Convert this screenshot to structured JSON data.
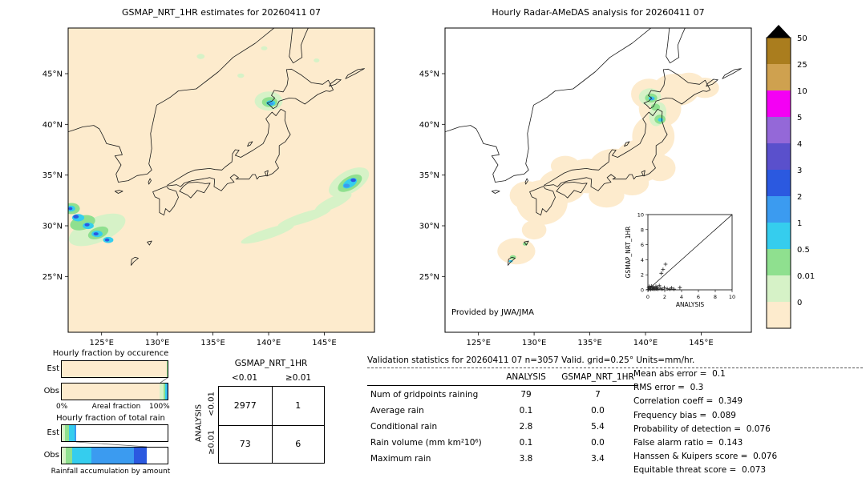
{
  "figure": {
    "bg": "#ffffff"
  },
  "left_map": {
    "title": "GSMAP_NRT_1HR estimates for 20260411 07",
    "x_ticks": [
      [
        125,
        "125°E"
      ],
      [
        130,
        "130°E"
      ],
      [
        135,
        "135°E"
      ],
      [
        140,
        "140°E"
      ],
      [
        145,
        "145°E"
      ]
    ],
    "y_ticks": [
      [
        45,
        "45°N"
      ],
      [
        40,
        "40°N"
      ],
      [
        35,
        "35°N"
      ],
      [
        30,
        "30°N"
      ],
      [
        25,
        "25°N"
      ]
    ],
    "blobs": [
      [
        133.9,
        46.7,
        0.35,
        0.25,
        0,
        1
      ],
      [
        137.5,
        44.8,
        0.3,
        0.22,
        0,
        1
      ],
      [
        139.6,
        47.5,
        0.28,
        0.2,
        0,
        1
      ],
      [
        144.3,
        46.3,
        0.26,
        0.2,
        0,
        1
      ],
      [
        140.0,
        42.3,
        1.25,
        0.95,
        0,
        1
      ],
      [
        140.1,
        42.2,
        0.7,
        0.5,
        0,
        2
      ],
      [
        140.2,
        42.1,
        0.4,
        0.28,
        0,
        3
      ],
      [
        140.25,
        42.05,
        0.18,
        0.13,
        0,
        4
      ],
      [
        147.2,
        34.3,
        2.0,
        1.1,
        -30,
        1
      ],
      [
        139.9,
        29.2,
        2.5,
        0.5,
        -18,
        1
      ],
      [
        143.2,
        30.8,
        2.5,
        0.5,
        -18,
        1
      ],
      [
        145.8,
        32.3,
        1.8,
        0.55,
        -25,
        1
      ],
      [
        147.3,
        34.2,
        1.2,
        0.65,
        -30,
        2
      ],
      [
        147.3,
        34.2,
        0.7,
        0.4,
        -30,
        3
      ],
      [
        147.0,
        33.95,
        0.28,
        0.2,
        0,
        4
      ],
      [
        147.6,
        34.5,
        0.24,
        0.18,
        0,
        5
      ],
      [
        124.6,
        29.6,
        2.7,
        1.25,
        -22,
        1
      ],
      [
        123.3,
        30.3,
        1.15,
        0.7,
        -15,
        2
      ],
      [
        124.7,
        29.3,
        0.95,
        0.55,
        -20,
        2
      ],
      [
        122.3,
        31.7,
        0.75,
        0.55,
        0,
        2
      ],
      [
        122.9,
        30.8,
        0.55,
        0.36,
        0,
        3
      ],
      [
        123.8,
        30.0,
        0.5,
        0.32,
        0,
        3
      ],
      [
        124.6,
        29.2,
        0.5,
        0.32,
        0,
        3
      ],
      [
        125.6,
        28.6,
        0.46,
        0.3,
        0,
        3
      ],
      [
        122.25,
        31.7,
        0.38,
        0.3,
        0,
        3
      ],
      [
        122.7,
        30.9,
        0.25,
        0.18,
        0,
        5
      ],
      [
        123.7,
        30.1,
        0.22,
        0.16,
        0,
        5
      ],
      [
        124.5,
        29.2,
        0.22,
        0.16,
        0,
        5
      ],
      [
        125.5,
        28.6,
        0.2,
        0.15,
        0,
        5
      ],
      [
        122.2,
        31.7,
        0.18,
        0.15,
        0,
        5
      ]
    ]
  },
  "right_map": {
    "title": "Hourly Radar-AMeDAS analysis for 20260411 07",
    "credit": "Provided by JWA/JMA",
    "x_ticks": [
      [
        125,
        "125°E"
      ],
      [
        130,
        "130°E"
      ],
      [
        135,
        "135°E"
      ],
      [
        140,
        "140°E"
      ],
      [
        145,
        "145°E"
      ]
    ],
    "y_ticks": [
      [
        45,
        "45°N"
      ],
      [
        40,
        "40°N"
      ],
      [
        35,
        "35°N"
      ],
      [
        30,
        "30°N"
      ],
      [
        25,
        "25°N"
      ]
    ],
    "coverage": [
      [
        130.7,
        32.3,
        2.3,
        2.2,
        0
      ],
      [
        129.4,
        33.0,
        1.6,
        1.4,
        0
      ],
      [
        132.5,
        33.9,
        2.1,
        1.7,
        0
      ],
      [
        132.8,
        35.9,
        1.3,
        1.0,
        0
      ],
      [
        134.8,
        34.9,
        2.1,
        1.7,
        0
      ],
      [
        136.5,
        33.0,
        1.6,
        1.2,
        0
      ],
      [
        137.2,
        35.7,
        2.3,
        1.9,
        0
      ],
      [
        138.8,
        34.2,
        1.5,
        1.2,
        0
      ],
      [
        139.5,
        36.4,
        2.3,
        2.1,
        0
      ],
      [
        141.3,
        35.7,
        1.4,
        1.3,
        0
      ],
      [
        140.7,
        38.8,
        1.9,
        2.1,
        0
      ],
      [
        141.3,
        41.6,
        1.9,
        1.9,
        0
      ],
      [
        142.7,
        43.4,
        2.1,
        1.6,
        0
      ],
      [
        140.3,
        43.0,
        1.6,
        1.5,
        0
      ],
      [
        143.9,
        44.0,
        1.4,
        1.1,
        0
      ],
      [
        145.3,
        43.6,
        1.3,
        1.0,
        0
      ],
      [
        128.4,
        27.5,
        1.7,
        1.3,
        0
      ],
      [
        130.0,
        29.6,
        1.1,
        0.95,
        0
      ]
    ],
    "blobs": [
      [
        140.4,
        42.7,
        1.0,
        0.85,
        0,
        1
      ],
      [
        141.1,
        41.0,
        0.75,
        1.2,
        15,
        1
      ],
      [
        140.5,
        42.6,
        0.55,
        0.45,
        0,
        2
      ],
      [
        141.3,
        40.5,
        0.5,
        0.45,
        0,
        2
      ],
      [
        140.9,
        41.7,
        0.4,
        0.35,
        0,
        2
      ],
      [
        140.55,
        42.55,
        0.28,
        0.2,
        0,
        3
      ],
      [
        141.35,
        40.45,
        0.24,
        0.18,
        0,
        3
      ],
      [
        140.6,
        42.5,
        0.12,
        0.1,
        0,
        4
      ],
      [
        128.1,
        26.9,
        0.28,
        0.2,
        0,
        2
      ],
      [
        129.2,
        28.2,
        0.22,
        0.16,
        0,
        2
      ],
      [
        127.9,
        26.5,
        0.18,
        0.13,
        0,
        3
      ]
    ],
    "inset": {
      "xlabel": "ANALYSIS",
      "ylabel": "GSMAP_NRT_1HR",
      "ticks": [
        0,
        2,
        4,
        6,
        8,
        10
      ],
      "xlim": [
        0,
        10
      ],
      "ylim": [
        0,
        10
      ],
      "points": [
        [
          0.05,
          0.05
        ],
        [
          0.1,
          0.25
        ],
        [
          0.15,
          0.45
        ],
        [
          0.2,
          0.1
        ],
        [
          0.3,
          0.3
        ],
        [
          0.35,
          0.05
        ],
        [
          0.45,
          0.5
        ],
        [
          0.5,
          0.15
        ],
        [
          0.6,
          0.35
        ],
        [
          0.65,
          0.1
        ],
        [
          0.75,
          0.25
        ],
        [
          0.85,
          0.1
        ],
        [
          0.95,
          0.45
        ],
        [
          1.0,
          0.15
        ],
        [
          1.1,
          0.3
        ],
        [
          1.2,
          0.1
        ],
        [
          1.35,
          0.55
        ],
        [
          1.5,
          0.2
        ],
        [
          1.6,
          2.2
        ],
        [
          1.7,
          0.1
        ],
        [
          1.8,
          2.7
        ],
        [
          1.95,
          0.3
        ],
        [
          2.1,
          3.4
        ],
        [
          2.3,
          0.15
        ],
        [
          2.6,
          0.1
        ],
        [
          2.8,
          0.25
        ],
        [
          3.1,
          0.1
        ],
        [
          3.8,
          0.3
        ]
      ]
    }
  },
  "colorbar": {
    "labels": [
      "50",
      "25",
      "10",
      "5",
      "4",
      "3",
      "2",
      "1",
      "0.5",
      "0.01",
      "0"
    ],
    "colors_top_to_bottom": [
      "#aa7d1e",
      "#cfa14f",
      "#f400f4",
      "#9468d8",
      "#5a50cc",
      "#2b59e0",
      "#3b9bf0",
      "#35cdee",
      "#8fe08f",
      "#d6f2c7",
      "#fdebcd"
    ],
    "over_arrow_color": "#000000"
  },
  "fraction_charts": {
    "occurrence_title": "Hourly fraction by occurence",
    "total_title": "Hourly fraction of total rain",
    "row_labels": [
      "Est",
      "Obs"
    ],
    "areal_axis": {
      "min": "0%",
      "label": "Areal fraction",
      "max": "100%"
    },
    "accum_label": "Rainfall accumulation by amount",
    "occurrence": {
      "est": [
        [
          0,
          99.0
        ],
        [
          1,
          0.6
        ],
        [
          2,
          0.4
        ]
      ],
      "obs": [
        [
          0,
          92.5
        ],
        [
          1,
          3.5
        ],
        [
          2,
          2.0
        ],
        [
          3,
          1.4
        ],
        [
          4,
          0.6
        ]
      ]
    },
    "total": {
      "est": [
        [
          1,
          3
        ],
        [
          2,
          4
        ],
        [
          3,
          5
        ],
        [
          4,
          2
        ],
        [
          -1,
          86
        ]
      ],
      "obs": [
        [
          1,
          4
        ],
        [
          2,
          6
        ],
        [
          3,
          18
        ],
        [
          4,
          40
        ],
        [
          5,
          12
        ],
        [
          -1,
          20
        ]
      ]
    }
  },
  "contingency": {
    "title": "GSMAP_NRT_1HR",
    "col_labels": [
      "<0.01",
      "≥0.01"
    ],
    "row_axis_label": "ANALYSIS",
    "row_labels": [
      "<0.01",
      "≥0.01"
    ],
    "values": [
      [
        "2977",
        "1"
      ],
      [
        "73",
        "6"
      ]
    ]
  },
  "validation": {
    "title": "Validation statistics for 20260411 07  n=3057 Valid. grid=0.25° Units=mm/hr.",
    "table": {
      "col_headers": [
        "ANALYSIS",
        "GSMAP_NRT_1HR"
      ],
      "rows": [
        [
          "Num of gridpoints raining",
          "79",
          "7"
        ],
        [
          "Average rain",
          "0.1",
          "0.0"
        ],
        [
          "Conditional rain",
          "2.8",
          "5.4"
        ],
        [
          "Rain volume (mm km²10⁶)",
          "0.1",
          "0.0"
        ],
        [
          "Maximum rain",
          "3.8",
          "3.4"
        ]
      ]
    },
    "stats": [
      [
        "Mean abs error",
        "0.1"
      ],
      [
        "RMS error",
        "0.3"
      ],
      [
        "Correlation coeff",
        "0.349"
      ],
      [
        "Frequency bias",
        "0.089"
      ],
      [
        "Probability of detection",
        "0.076"
      ],
      [
        "False alarm ratio",
        "0.143"
      ],
      [
        "Hanssen & Kuipers score",
        "0.076"
      ],
      [
        "Equitable threat score",
        "0.073"
      ]
    ]
  },
  "chart_data": [
    {
      "type": "heatmap",
      "title": "GSMAP_NRT_1HR estimates for 20260411 07",
      "x_ticks": [
        "125°E",
        "130°E",
        "135°E",
        "140°E",
        "145°E"
      ],
      "y_ticks": [
        "45°N",
        "40°N",
        "35°N",
        "30°N",
        "25°N"
      ],
      "units": "mm/hr",
      "color_levels": [
        0,
        0.01,
        0.5,
        1,
        2,
        3,
        4,
        5,
        10,
        25,
        50
      ],
      "colors_low_to_high": [
        "#fdebcd",
        "#d6f2c7",
        "#8fe08f",
        "#35cdee",
        "#3b9bf0",
        "#2b59e0",
        "#5a50cc",
        "#9468d8",
        "#f400f4",
        "#cfa14f",
        "#aa7d1e"
      ],
      "notes": "Satellite precipitation field; rain cells near 140E/42N, 147E/34N and 122-126E/28-32N"
    },
    {
      "type": "heatmap",
      "title": "Hourly Radar-AMeDAS analysis for 20260411 07",
      "x_ticks": [
        "125°E",
        "130°E",
        "135°E",
        "140°E",
        "145°E"
      ],
      "y_ticks": [
        "45°N",
        "40°N",
        "35°N",
        "30°N",
        "25°N"
      ],
      "units": "mm/hr",
      "annotation": "Provided by JWA/JMA",
      "notes": "Radar coverage band along Japan; rain cells near 140E/43N and 141E/40N"
    },
    {
      "type": "scatter",
      "xlabel": "ANALYSIS",
      "ylabel": "GSMAP_NRT_1HR",
      "xlim": [
        0,
        10
      ],
      "ylim": [
        0,
        10
      ],
      "diagonal": true,
      "points": [
        [
          0.05,
          0.05
        ],
        [
          0.1,
          0.25
        ],
        [
          0.15,
          0.45
        ],
        [
          0.2,
          0.1
        ],
        [
          0.3,
          0.3
        ],
        [
          0.35,
          0.05
        ],
        [
          0.45,
          0.5
        ],
        [
          0.5,
          0.15
        ],
        [
          0.6,
          0.35
        ],
        [
          0.65,
          0.1
        ],
        [
          0.75,
          0.25
        ],
        [
          0.85,
          0.1
        ],
        [
          0.95,
          0.45
        ],
        [
          1.0,
          0.15
        ],
        [
          1.1,
          0.3
        ],
        [
          1.2,
          0.1
        ],
        [
          1.35,
          0.55
        ],
        [
          1.5,
          0.2
        ],
        [
          1.6,
          2.2
        ],
        [
          1.7,
          0.1
        ],
        [
          1.8,
          2.7
        ],
        [
          1.95,
          0.3
        ],
        [
          2.1,
          3.4
        ],
        [
          2.3,
          0.15
        ],
        [
          2.6,
          0.1
        ],
        [
          2.8,
          0.25
        ],
        [
          3.1,
          0.1
        ],
        [
          3.8,
          0.3
        ]
      ]
    },
    {
      "type": "table",
      "title": "GSMAP_NRT_1HR",
      "row_axis": "ANALYSIS",
      "columns": [
        "<0.01",
        "≥0.01"
      ],
      "rows": [
        [
          "<0.01",
          2977,
          1
        ],
        [
          "≥0.01",
          73,
          6
        ]
      ]
    },
    {
      "type": "table",
      "title": "Validation statistics for 20260411 07  n=3057 Valid. grid=0.25° Units=mm/hr.",
      "columns": [
        "",
        "ANALYSIS",
        "GSMAP_NRT_1HR"
      ],
      "rows": [
        [
          "Num of gridpoints raining",
          79,
          7
        ],
        [
          "Average rain",
          0.1,
          0.0
        ],
        [
          "Conditional rain",
          2.8,
          5.4
        ],
        [
          "Rain volume (mm km²10⁶)",
          0.1,
          0.0
        ],
        [
          "Maximum rain",
          3.8,
          3.4
        ]
      ],
      "stats": {
        "Mean abs error": 0.1,
        "RMS error": 0.3,
        "Correlation coeff": 0.349,
        "Frequency bias": 0.089,
        "Probability of detection": 0.076,
        "False alarm ratio": 0.143,
        "Hanssen & Kuipers score": 0.076,
        "Equitable threat score": 0.073
      }
    },
    {
      "type": "bar",
      "title": "Hourly fraction by occurence / Hourly fraction of total rain",
      "categories": [
        "Est occurrence",
        "Obs occurrence",
        "Est total rain",
        "Obs total rain"
      ],
      "note": "Stacked horizontal fraction bars, areal fraction 0%-100%, colored by rainfall accumulation amount"
    }
  ]
}
